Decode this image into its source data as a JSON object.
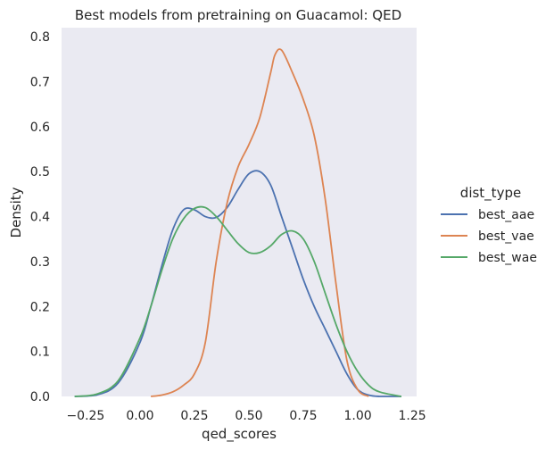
{
  "chart_data": {
    "type": "line",
    "title": "Best models from pretraining on Guacamol: QED",
    "xlabel": "qed_scores",
    "ylabel": "Density",
    "xlim": [
      -0.36,
      1.27
    ],
    "ylim": [
      0,
      0.82
    ],
    "xticks": [
      -0.25,
      0.0,
      0.25,
      0.5,
      0.75,
      1.0,
      1.25
    ],
    "xtick_labels": [
      "−0.25",
      "0.00",
      "0.25",
      "0.50",
      "0.75",
      "1.00",
      "1.25"
    ],
    "yticks": [
      0.0,
      0.1,
      0.2,
      0.3,
      0.4,
      0.5,
      0.6,
      0.7,
      0.8
    ],
    "ytick_labels": [
      "0.0",
      "0.1",
      "0.2",
      "0.3",
      "0.4",
      "0.5",
      "0.6",
      "0.7",
      "0.8"
    ],
    "grid": false,
    "background": "#eaeaf2",
    "legend": {
      "title": "dist_type",
      "placement": "right"
    },
    "series": [
      {
        "name": "best_aae",
        "color": "#4c72b0",
        "x": [
          -0.3,
          -0.2,
          -0.1,
          0.0,
          0.05,
          0.1,
          0.15,
          0.2,
          0.25,
          0.3,
          0.35,
          0.4,
          0.45,
          0.5,
          0.55,
          0.6,
          0.65,
          0.7,
          0.75,
          0.8,
          0.85,
          0.9,
          0.95,
          1.0,
          1.05,
          1.1,
          1.2
        ],
        "y": [
          0.0,
          0.003,
          0.03,
          0.12,
          0.2,
          0.29,
          0.37,
          0.415,
          0.415,
          0.4,
          0.398,
          0.42,
          0.46,
          0.495,
          0.5,
          0.47,
          0.4,
          0.33,
          0.26,
          0.2,
          0.15,
          0.1,
          0.05,
          0.015,
          0.003,
          0.0,
          0.0
        ]
      },
      {
        "name": "best_vae",
        "color": "#dd8452",
        "x": [
          0.05,
          0.1,
          0.15,
          0.2,
          0.25,
          0.3,
          0.35,
          0.4,
          0.45,
          0.5,
          0.55,
          0.6,
          0.62,
          0.65,
          0.7,
          0.75,
          0.8,
          0.85,
          0.9,
          0.95,
          1.0,
          1.05
        ],
        "y": [
          0.0,
          0.003,
          0.01,
          0.025,
          0.05,
          0.12,
          0.3,
          0.43,
          0.51,
          0.56,
          0.62,
          0.72,
          0.76,
          0.77,
          0.72,
          0.66,
          0.58,
          0.44,
          0.25,
          0.08,
          0.015,
          0.0
        ]
      },
      {
        "name": "best_wae",
        "color": "#55a868",
        "x": [
          -0.3,
          -0.2,
          -0.1,
          0.0,
          0.05,
          0.1,
          0.15,
          0.2,
          0.25,
          0.3,
          0.35,
          0.4,
          0.45,
          0.5,
          0.55,
          0.6,
          0.65,
          0.7,
          0.75,
          0.8,
          0.85,
          0.9,
          0.95,
          1.0,
          1.05,
          1.1,
          1.2
        ],
        "y": [
          0.0,
          0.005,
          0.035,
          0.13,
          0.2,
          0.28,
          0.35,
          0.395,
          0.418,
          0.42,
          0.4,
          0.37,
          0.34,
          0.32,
          0.32,
          0.335,
          0.36,
          0.368,
          0.35,
          0.3,
          0.23,
          0.16,
          0.1,
          0.055,
          0.025,
          0.01,
          0.0
        ]
      }
    ]
  }
}
